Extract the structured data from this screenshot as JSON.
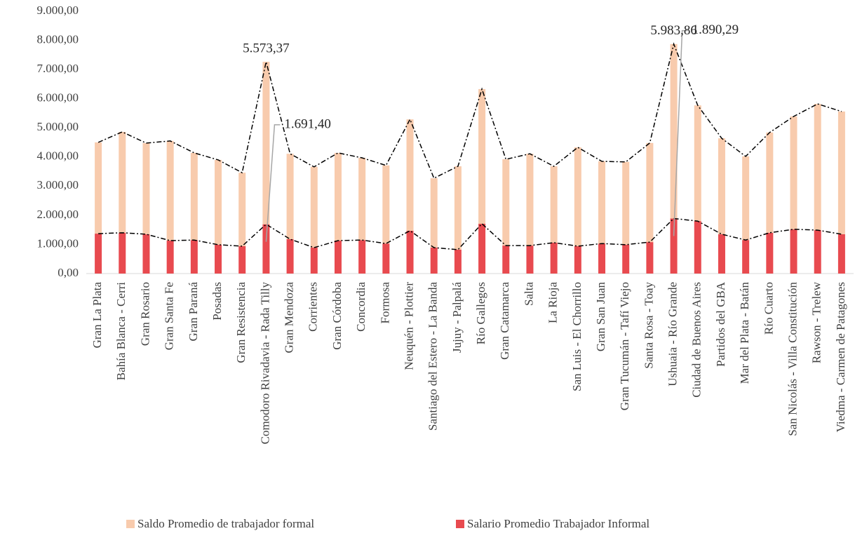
{
  "chart_data": {
    "type": "bar",
    "stacked": true,
    "categories": [
      "Gran La Plata",
      "Bahía Blanca - Cerri",
      "Gran Rosario",
      "Gran Santa Fe",
      "Gran Paraná",
      "Posadas",
      "Gran Resistencia",
      "Comodoro Rivadavia - Rada Tilly",
      "Gran Mendoza",
      "Corrientes",
      "Gran Córdoba",
      "Concordia",
      "Formosa",
      "Neuquén - Plottier",
      "Santiago del Estero - La Banda",
      "Jujuy - Palpalá",
      "Río Gallegos",
      "Gran Catamarca",
      "Salta",
      "La Rioja",
      "San Luis - El Chorrillo",
      "Gran San Juan",
      "Gran Tucumán - Tafí Viejo",
      "Santa Rosa - Toay",
      "Ushuaia - Río Grande",
      "Ciudad de Buenos Aires",
      "Partidos del GBA",
      "Mar del Plata - Batán",
      "Río Cuarto",
      "San Nicolás - Villa Constitución",
      "Rawson - Trelew",
      "Viedma - Carmen de Patagones"
    ],
    "series": [
      {
        "name": "Salario Promedio Trabajador Informal",
        "color": "#e84a4f",
        "values": [
          1370,
          1400,
          1350,
          1130,
          1150,
          990,
          940,
          1691.4,
          1180,
          890,
          1130,
          1150,
          1030,
          1470,
          890,
          820,
          1710,
          960,
          960,
          1060,
          940,
          1030,
          990,
          1080,
          1890.29,
          1800,
          1350,
          1150,
          1400,
          1520,
          1490,
          1350
        ],
        "value_labels": [
          null,
          null,
          null,
          null,
          null,
          null,
          null,
          "1.691,40",
          null,
          null,
          null,
          null,
          null,
          null,
          null,
          null,
          null,
          null,
          null,
          null,
          null,
          null,
          null,
          null,
          "1.890,29",
          null,
          null,
          null,
          null,
          null,
          null,
          null
        ]
      },
      {
        "name": "Saldo Promedio de trabajador formal",
        "color": "#f8cbad",
        "values": [
          3130,
          3460,
          3125,
          3420,
          2990,
          2910,
          2520,
          5573.37,
          2930,
          2770,
          3010,
          2820,
          2680,
          3820,
          2380,
          2860,
          4620,
          2960,
          3150,
          2620,
          3390,
          2820,
          2840,
          3400,
          5983.86,
          3970,
          3290,
          2870,
          3440,
          3870,
          4330,
          4210
        ],
        "value_labels": [
          null,
          null,
          null,
          null,
          null,
          null,
          null,
          "5.573,37",
          null,
          null,
          null,
          null,
          null,
          null,
          null,
          null,
          null,
          null,
          null,
          null,
          null,
          null,
          null,
          null,
          "5.983,86",
          null,
          null,
          null,
          null,
          null,
          null,
          null
        ]
      }
    ],
    "ylim": [
      0,
      9000
    ],
    "yticks": [
      {
        "value": 0,
        "label": "0,00"
      },
      {
        "value": 1000,
        "label": "1.000,00"
      },
      {
        "value": 2000,
        "label": "2.000,00"
      },
      {
        "value": 3000,
        "label": "3.000,00"
      },
      {
        "value": 4000,
        "label": "4.000,00"
      },
      {
        "value": 5000,
        "label": "5.000,00"
      },
      {
        "value": 6000,
        "label": "6.000,00"
      },
      {
        "value": 7000,
        "label": "7.000,00"
      },
      {
        "value": 8000,
        "label": "8.000,00"
      },
      {
        "value": 9000,
        "label": "9.000,00"
      }
    ],
    "grid": false,
    "legend": "bottom"
  }
}
